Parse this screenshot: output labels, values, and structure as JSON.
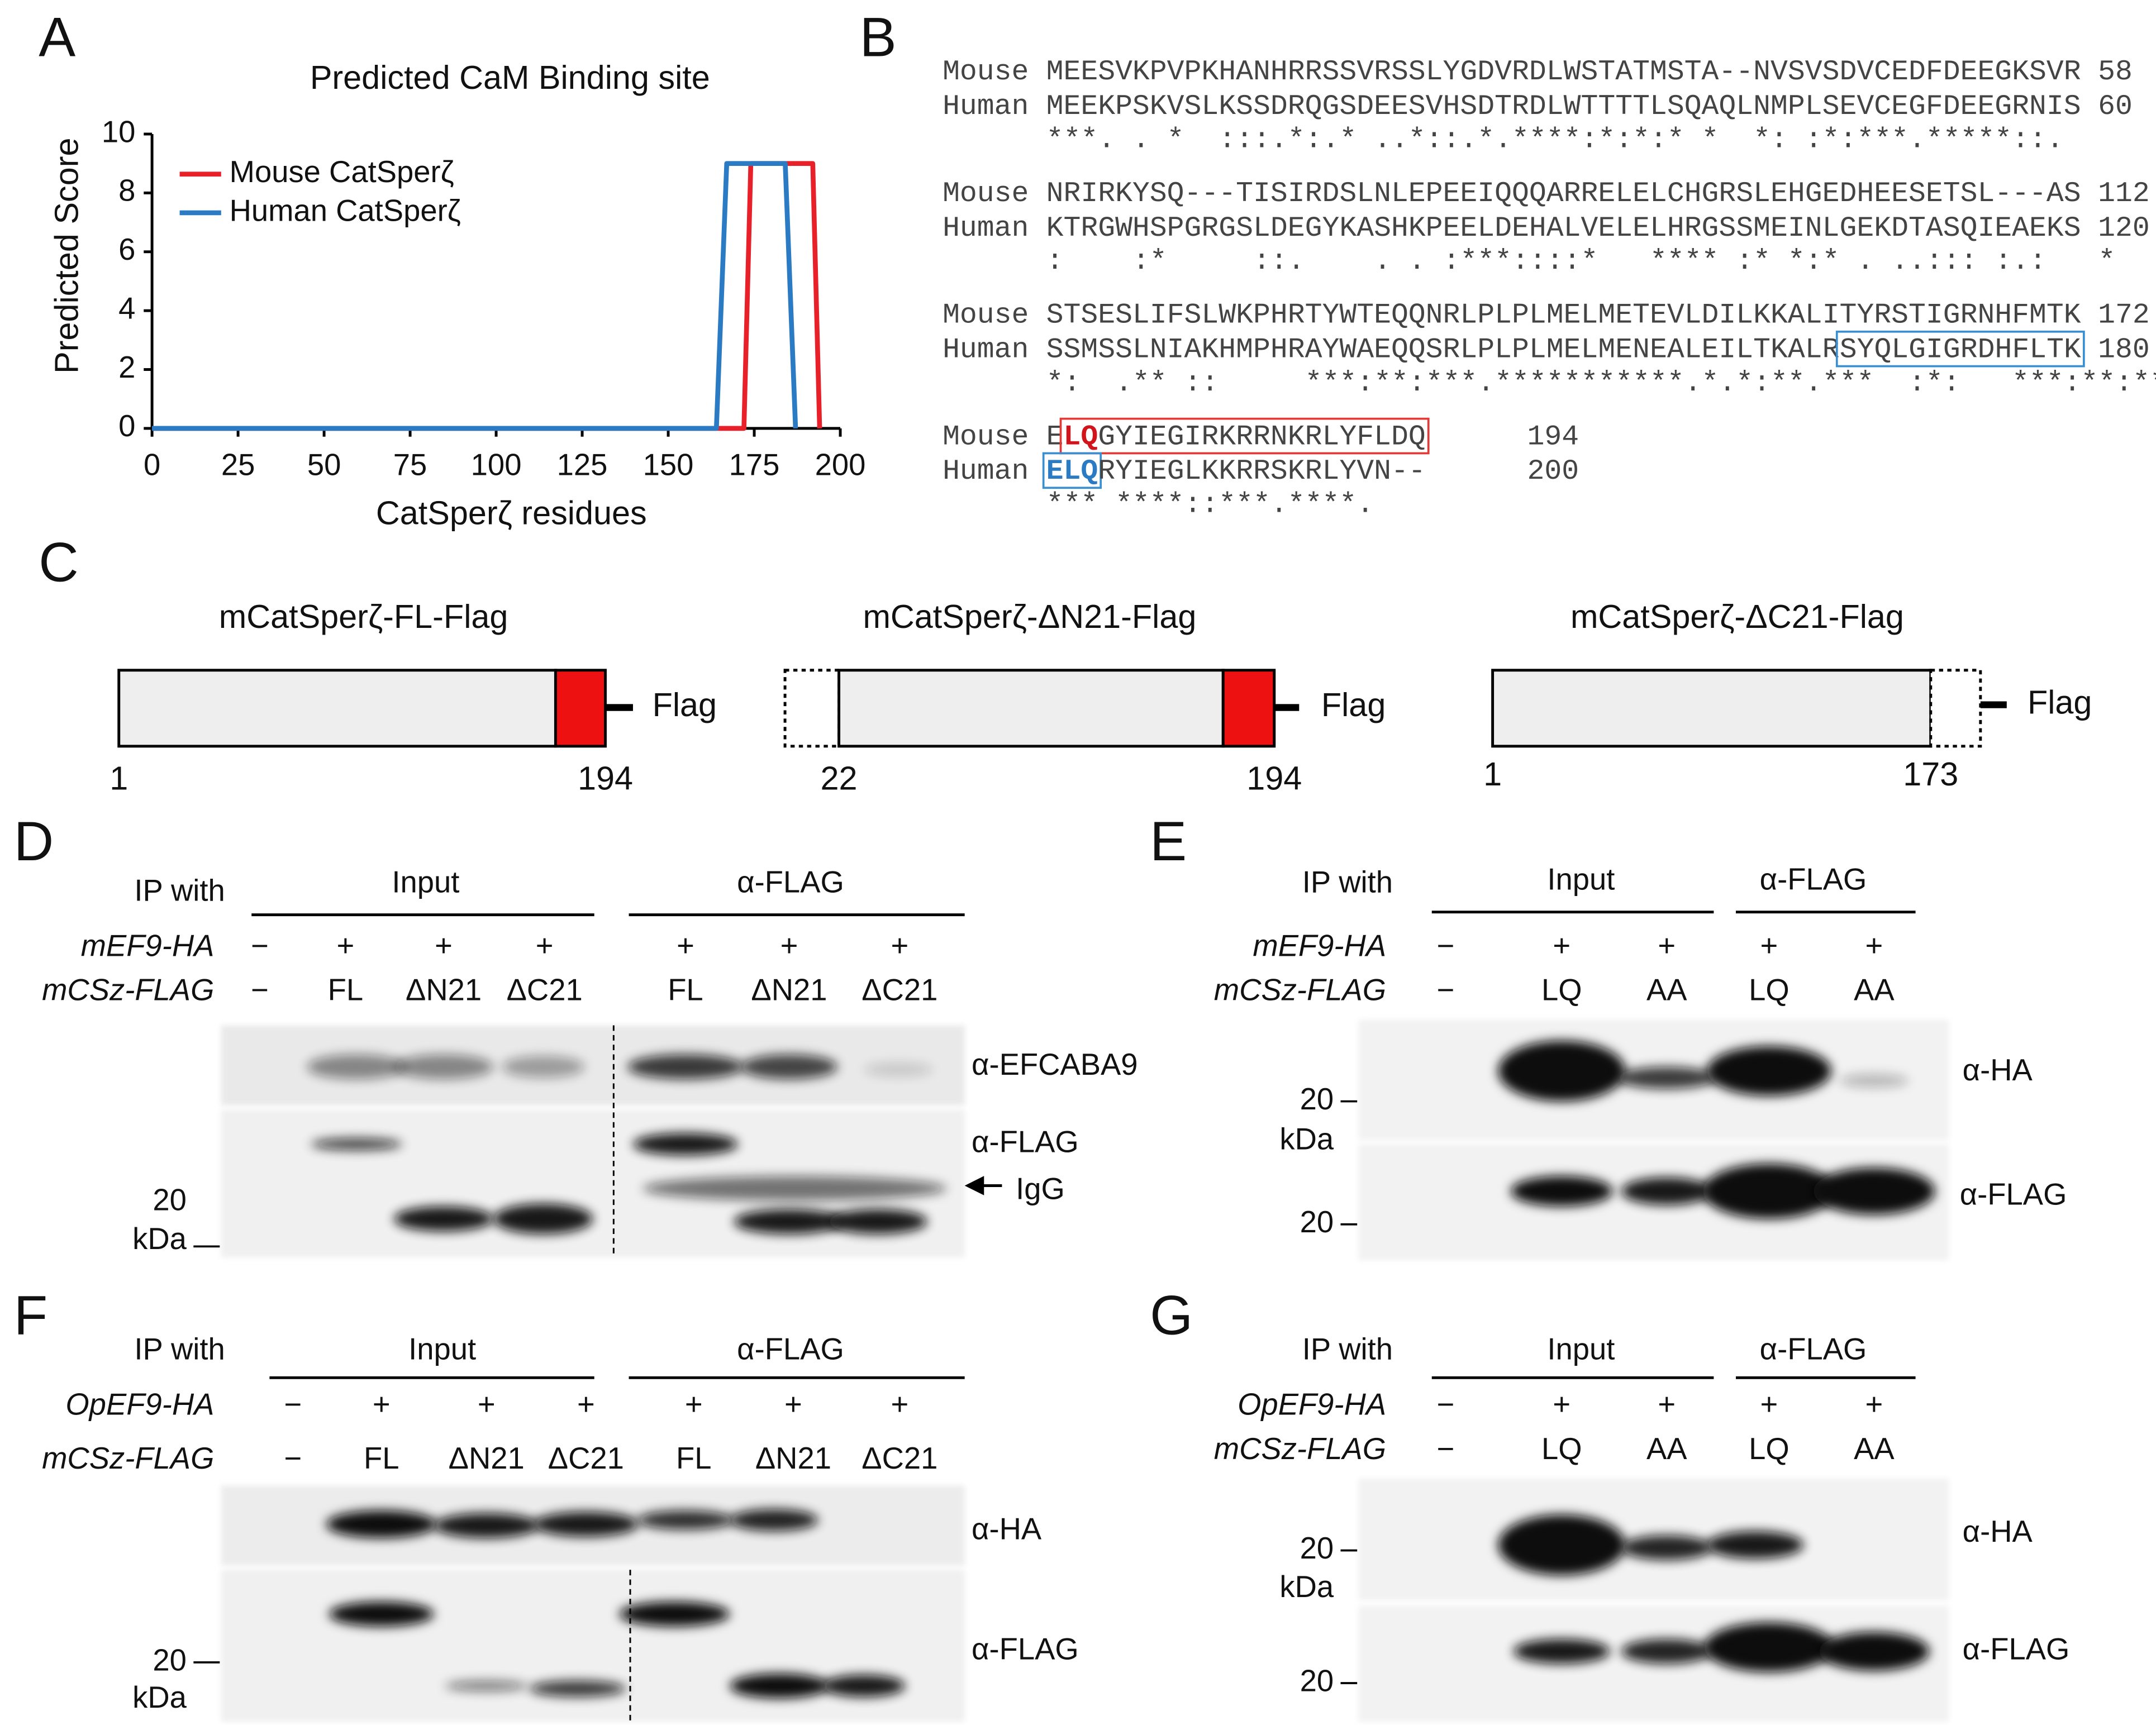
{
  "chart_data": {
    "type": "line",
    "panel_label": "A",
    "title": "Predicted CaM Binding site",
    "xlabel": "CatSperζ residues",
    "ylabel": "Predicted Score",
    "xlim": [
      0,
      200
    ],
    "xticks": [
      0,
      25,
      50,
      75,
      100,
      125,
      150,
      175,
      200
    ],
    "ylim": [
      0,
      10
    ],
    "yticks": [
      0,
      2,
      4,
      6,
      8,
      10
    ],
    "legend": "upper left",
    "series": [
      {
        "name": "Mouse CatSperζ",
        "color": "#e8202a",
        "x": [
          0,
          172,
          174,
          192,
          194
        ],
        "values": [
          0,
          0,
          9,
          9,
          0
        ]
      },
      {
        "name": "Human CatSperζ",
        "color": "#2a7bc4",
        "x": [
          0,
          164,
          167,
          184,
          187
        ],
        "values": [
          0,
          0,
          9,
          9,
          0
        ]
      }
    ]
  },
  "alignment": {
    "panel_label": "B",
    "blocks": [
      {
        "rows": [
          {
            "name": "Mouse",
            "segments": [
              {
                "text": "MEESVKPVPKHANHRRSSVRSSLYGDVRDLWSTATMSTA--NVSVSDVCEDFDEEGKSVR"
              }
            ],
            "end": 58
          },
          {
            "name": "Human",
            "segments": [
              {
                "text": "MEEKPSKVSLKSSDRQGSDEESVHSDTRDLWTTTTLSQAQLNMPLSEVCEGFDEEGRNIS"
              }
            ],
            "end": 60
          }
        ],
        "consensus": "***. . *  :::.*:.* ..*::.*.****:*:*:* *  *: :*:***.*****::."
      },
      {
        "rows": [
          {
            "name": "Mouse",
            "segments": [
              {
                "text": "NRIRKYSQ---TISIRDSLNLEPEEIQQQARRELELCHGRSLEHGEDHEESETSL---AS"
              }
            ],
            "end": 112
          },
          {
            "name": "Human",
            "segments": [
              {
                "text": "KTRGWHSPGRGSLDEGYKASHKPEELDEHALVELELHRGSSMEINLGEKDTASQIEAEKS"
              }
            ],
            "end": 120
          }
        ],
        "consensus": ":    :*     ::.    . . :***::::*   **** :* *:* . ..::: :.:   *"
      },
      {
        "rows": [
          {
            "name": "Mouse",
            "segments": [
              {
                "text": "STSESLIFSLWKPHRTYWTEQQNRLPLPLMELMETEVLDILKKALITYRSTIGRNHFMTK"
              }
            ],
            "end": 172
          },
          {
            "name": "Human",
            "segments": [
              {
                "text": "SSMSSLNIAKHMPHRAYWAEQQSRLPLPLMELMENEALEILTKALR"
              },
              {
                "box": "#3a8fd0",
                "segments": [
                  {
                    "text": "SYQLGIGRDHFLTK"
                  }
                ]
              }
            ],
            "end": 180
          }
        ],
        "consensus": "*:  .** ::     ***:**:***.***********.*.*:**.***  :*:   ***:**:**"
      },
      {
        "rows": [
          {
            "name": "Mouse",
            "segments": [
              {
                "text": "E"
              },
              {
                "box": "#e53935",
                "segments": [
                  {
                    "text": "LQ",
                    "color": "#d0161c",
                    "bold": true
                  },
                  {
                    "text": "GYIEGIRKRRNKRLYFLDQ"
                  }
                ]
              }
            ],
            "end": 194
          },
          {
            "name": "Human",
            "segments": [
              {
                "box": "#3a8fd0",
                "segments": [
                  {
                    "text": "ELQ",
                    "color": "#2a7bc4",
                    "bold": true
                  }
                ]
              },
              {
                "text": "RYIEGLKKRRSKRLYVN--"
              }
            ],
            "end": 200
          }
        ],
        "consensus": "*** ****::***.****."
      }
    ]
  },
  "constructs": {
    "panel_label": "C",
    "items": [
      {
        "title": "mCatSperζ-FL-Flag",
        "tag": "Flag",
        "start": 1,
        "end": 194
      },
      {
        "title": "mCatSperζ-ΔN21-Flag",
        "tag": "Flag",
        "start": 22,
        "end": 194
      },
      {
        "title": "mCatSperζ-ΔC21-Flag",
        "tag": "Flag",
        "start": 1,
        "end": 173
      }
    ]
  },
  "blots": [
    {
      "panel_label": "D",
      "ip_label": "IP with",
      "groups": [
        "Input",
        "α-FLAG"
      ],
      "rows": [
        {
          "label": "mEF9-HA",
          "cells": [
            "−",
            "+",
            "+",
            "+",
            "+",
            "+",
            "+"
          ]
        },
        {
          "label": "mCSz-FLAG",
          "cells": [
            "−",
            "FL",
            "ΔN21",
            "ΔC21",
            "FL",
            "ΔN21",
            "ΔC21"
          ]
        }
      ],
      "antibodies": [
        "α-EFCABA9",
        "α-FLAG"
      ],
      "annotation": "IgG",
      "markers": [
        {
          "value": 20,
          "unit": "kDa"
        }
      ]
    },
    {
      "panel_label": "E",
      "ip_label": "IP with",
      "groups": [
        "Input",
        "α-FLAG"
      ],
      "rows": [
        {
          "label": "mEF9-HA",
          "cells": [
            "−",
            "+",
            "+",
            "+",
            "+"
          ]
        },
        {
          "label": "mCSz-FLAG",
          "cells": [
            "−",
            "LQ",
            "AA",
            "LQ",
            "AA"
          ]
        }
      ],
      "antibodies": [
        "α-HA",
        "α-FLAG"
      ],
      "markers": [
        {
          "value": 20,
          "unit": "kDa"
        },
        {
          "value": 20
        }
      ]
    },
    {
      "panel_label": "F",
      "ip_label": "IP with",
      "groups": [
        "Input",
        "α-FLAG"
      ],
      "rows": [
        {
          "label": "OpEF9-HA",
          "cells": [
            "−",
            "+",
            "+",
            "+",
            "+",
            "+",
            "+"
          ]
        },
        {
          "label": "mCSz-FLAG",
          "cells": [
            "−",
            "FL",
            "ΔN21",
            "ΔC21",
            "FL",
            "ΔN21",
            "ΔC21"
          ]
        }
      ],
      "antibodies": [
        "α-HA",
        "α-FLAG"
      ],
      "markers": [
        {
          "value": 20,
          "unit": "kDa"
        }
      ]
    },
    {
      "panel_label": "G",
      "ip_label": "IP with",
      "groups": [
        "Input",
        "α-FLAG"
      ],
      "rows": [
        {
          "label": "OpEF9-HA",
          "cells": [
            "−",
            "+",
            "+",
            "+",
            "+"
          ]
        },
        {
          "label": "mCSz-FLAG",
          "cells": [
            "−",
            "LQ",
            "AA",
            "LQ",
            "AA"
          ]
        }
      ],
      "antibodies": [
        "α-HA",
        "α-FLAG"
      ],
      "markers": [
        {
          "value": 20,
          "unit": "kDa"
        },
        {
          "value": 20
        }
      ]
    }
  ]
}
